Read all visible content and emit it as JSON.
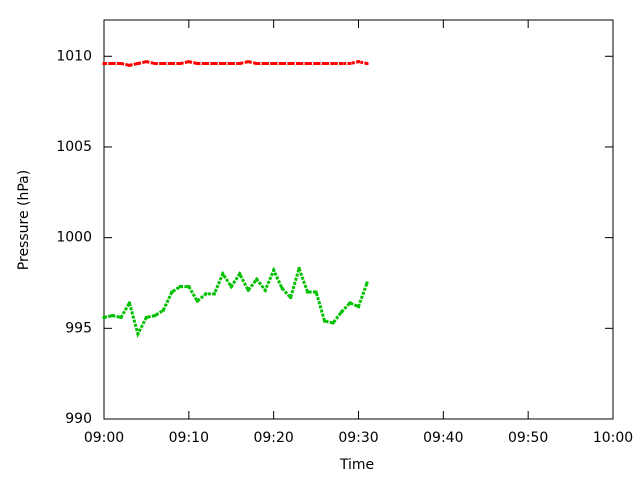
{
  "chart_data": {
    "type": "scatter",
    "x_label": "Time",
    "y_label": "Pressure (hPa)",
    "x": [
      "09:00",
      "09:01",
      "09:02",
      "09:03",
      "09:04",
      "09:05",
      "09:06",
      "09:07",
      "09:08",
      "09:09",
      "09:10",
      "09:11",
      "09:12",
      "09:13",
      "09:14",
      "09:15",
      "09:16",
      "09:17",
      "09:18",
      "09:19",
      "09:20",
      "09:21",
      "09:22",
      "09:23",
      "09:24",
      "09:25",
      "09:26",
      "09:27",
      "09:28",
      "09:29",
      "09:30",
      "09:31"
    ],
    "series": [
      {
        "color": "#ff0000",
        "values": [
          1009.6,
          1009.6,
          1009.6,
          1009.5,
          1009.6,
          1009.7,
          1009.6,
          1009.6,
          1009.6,
          1009.6,
          1009.7,
          1009.6,
          1009.6,
          1009.6,
          1009.6,
          1009.6,
          1009.6,
          1009.7,
          1009.6,
          1009.6,
          1009.6,
          1009.6,
          1009.6,
          1009.6,
          1009.6,
          1009.6,
          1009.6,
          1009.6,
          1009.6,
          1009.6,
          1009.7,
          1009.6
        ]
      },
      {
        "color": "#00c000",
        "values": [
          995.6,
          995.7,
          995.6,
          996.4,
          994.7,
          995.6,
          995.7,
          996.0,
          997.0,
          997.3,
          997.3,
          996.5,
          996.9,
          996.9,
          998.0,
          997.3,
          998.0,
          997.1,
          997.7,
          997.1,
          998.2,
          997.2,
          996.7,
          998.3,
          997.0,
          997.0,
          995.4,
          995.3,
          995.9,
          996.4,
          996.2,
          997.5
        ]
      }
    ],
    "xlim": [
      "09:00",
      "10:00"
    ],
    "xticks": [
      "09:00",
      "09:10",
      "09:20",
      "09:30",
      "09:40",
      "09:50",
      "10:00"
    ],
    "ylim": [
      990,
      1012
    ],
    "yticks": [
      990,
      995,
      1000,
      1005,
      1010
    ],
    "grid": false
  }
}
